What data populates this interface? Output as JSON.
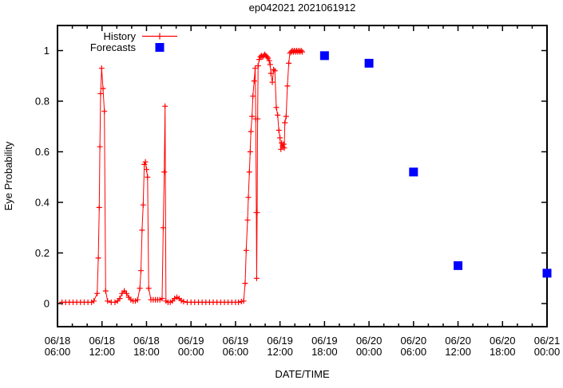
{
  "title": "ep042021 2021061912",
  "axes": {
    "x_label": "DATE/TIME",
    "y_label": "Eye Probability",
    "x_tick_labels": [
      [
        "06/18",
        "06:00"
      ],
      [
        "06/18",
        "12:00"
      ],
      [
        "06/18",
        "18:00"
      ],
      [
        "06/19",
        "00:00"
      ],
      [
        "06/19",
        "06:00"
      ],
      [
        "06/19",
        "12:00"
      ],
      [
        "06/19",
        "18:00"
      ],
      [
        "06/20",
        "00:00"
      ],
      [
        "06/20",
        "06:00"
      ],
      [
        "06/20",
        "12:00"
      ],
      [
        "06/20",
        "18:00"
      ],
      [
        "06/21",
        "00:00"
      ]
    ],
    "y_tick_labels": [
      "0",
      "0.2",
      "0.4",
      "0.6",
      "0.8",
      "1"
    ]
  },
  "legend": {
    "history_label": "History",
    "forecasts_label": "Forecasts"
  },
  "colors": {
    "history": "#ff0000",
    "forecast": "#0000ff",
    "axis": "#000000",
    "background": "#ffffff"
  },
  "chart_data": {
    "type": "line",
    "title": "ep042021 2021061912",
    "xlabel": "DATE/TIME",
    "ylabel": "Eye Probability",
    "x_unit": "hours_since_06/18_06:00",
    "x_range_hours": [
      0,
      66
    ],
    "x_major_tick_hours": 6,
    "x_minor_tick_hours": 2,
    "ylim": [
      -0.09,
      1.1
    ],
    "y_major_ticks": [
      0,
      0.2,
      0.4,
      0.6,
      0.8,
      1
    ],
    "grid": "off",
    "legend_position": "top-left-inside",
    "series": [
      {
        "name": "History",
        "style": "line-with-plus-markers",
        "color": "#ff0000",
        "points": [
          [
            0.6,
            0.005
          ],
          [
            1.1,
            0.005
          ],
          [
            1.6,
            0.005
          ],
          [
            2.1,
            0.005
          ],
          [
            2.6,
            0.005
          ],
          [
            3.1,
            0.005
          ],
          [
            3.6,
            0.005
          ],
          [
            4.1,
            0.005
          ],
          [
            4.6,
            0.005
          ],
          [
            4.9,
            0.01
          ],
          [
            5.35,
            0.04
          ],
          [
            5.5,
            0.18
          ],
          [
            5.63,
            0.38
          ],
          [
            5.72,
            0.62
          ],
          [
            5.81,
            0.83
          ],
          [
            5.95,
            0.93
          ],
          [
            6.14,
            0.85
          ],
          [
            6.32,
            0.76
          ],
          [
            6.49,
            0.05
          ],
          [
            6.75,
            0.01
          ],
          [
            7.25,
            0.005
          ],
          [
            7.75,
            0.005
          ],
          [
            8.1,
            0.01
          ],
          [
            8.4,
            0.02
          ],
          [
            8.7,
            0.04
          ],
          [
            9.0,
            0.05
          ],
          [
            9.3,
            0.04
          ],
          [
            9.6,
            0.025
          ],
          [
            9.9,
            0.015
          ],
          [
            10.2,
            0.01
          ],
          [
            10.5,
            0.01
          ],
          [
            10.8,
            0.015
          ],
          [
            11.1,
            0.06
          ],
          [
            11.25,
            0.13
          ],
          [
            11.4,
            0.29
          ],
          [
            11.55,
            0.39
          ],
          [
            11.7,
            0.55
          ],
          [
            11.85,
            0.56
          ],
          [
            12.0,
            0.53
          ],
          [
            12.15,
            0.5
          ],
          [
            12.3,
            0.06
          ],
          [
            12.6,
            0.015
          ],
          [
            12.9,
            0.015
          ],
          [
            13.2,
            0.015
          ],
          [
            13.5,
            0.015
          ],
          [
            13.8,
            0.015
          ],
          [
            14.1,
            0.02
          ],
          [
            14.25,
            0.3
          ],
          [
            14.4,
            0.52
          ],
          [
            14.5,
            0.78
          ],
          [
            14.62,
            0.01
          ],
          [
            14.9,
            0.005
          ],
          [
            15.2,
            0.005
          ],
          [
            15.5,
            0.01
          ],
          [
            15.8,
            0.02
          ],
          [
            16.1,
            0.025
          ],
          [
            16.4,
            0.02
          ],
          [
            16.7,
            0.012
          ],
          [
            17.0,
            0.008
          ],
          [
            17.5,
            0.005
          ],
          [
            18.0,
            0.005
          ],
          [
            18.5,
            0.005
          ],
          [
            19.0,
            0.005
          ],
          [
            19.5,
            0.005
          ],
          [
            20.0,
            0.005
          ],
          [
            20.5,
            0.005
          ],
          [
            21.0,
            0.005
          ],
          [
            21.5,
            0.005
          ],
          [
            22.0,
            0.005
          ],
          [
            22.5,
            0.005
          ],
          [
            23.0,
            0.005
          ],
          [
            23.5,
            0.005
          ],
          [
            24.0,
            0.005
          ],
          [
            24.4,
            0.005
          ],
          [
            24.8,
            0.008
          ],
          [
            25.1,
            0.01
          ],
          [
            25.3,
            0.08
          ],
          [
            25.44,
            0.21
          ],
          [
            25.62,
            0.33
          ],
          [
            25.73,
            0.42
          ],
          [
            25.87,
            0.52
          ],
          [
            25.98,
            0.6
          ],
          [
            26.08,
            0.68
          ],
          [
            26.23,
            0.74
          ],
          [
            26.35,
            0.82
          ],
          [
            26.52,
            0.88
          ],
          [
            26.65,
            0.93
          ],
          [
            26.73,
            0.73
          ],
          [
            26.81,
            0.36
          ],
          [
            26.85,
            0.1
          ],
          [
            26.92,
            0.36
          ],
          [
            26.98,
            0.73
          ],
          [
            27.05,
            0.94
          ],
          [
            27.2,
            0.965
          ],
          [
            27.35,
            0.975
          ],
          [
            27.5,
            0.98
          ],
          [
            27.65,
            0.975
          ],
          [
            27.8,
            0.98
          ],
          [
            27.95,
            0.985
          ],
          [
            28.1,
            0.98
          ],
          [
            28.25,
            0.975
          ],
          [
            28.4,
            0.97
          ],
          [
            28.55,
            0.96
          ],
          [
            28.67,
            0.945
          ],
          [
            28.78,
            0.91
          ],
          [
            28.96,
            0.875
          ],
          [
            29.14,
            0.925
          ],
          [
            29.31,
            0.92
          ],
          [
            29.5,
            0.775
          ],
          [
            29.68,
            0.745
          ],
          [
            29.85,
            0.685
          ],
          [
            30.0,
            0.655
          ],
          [
            30.11,
            0.61
          ],
          [
            30.22,
            0.635
          ],
          [
            30.36,
            0.62
          ],
          [
            30.5,
            0.63
          ],
          [
            30.58,
            0.615
          ],
          [
            30.65,
            0.715
          ],
          [
            30.82,
            0.74
          ],
          [
            31.0,
            0.86
          ],
          [
            31.18,
            0.95
          ],
          [
            31.33,
            0.99
          ],
          [
            31.5,
            0.995
          ],
          [
            31.65,
            1.0
          ],
          [
            31.8,
            0.995
          ],
          [
            31.95,
            1.0
          ],
          [
            32.1,
            0.995
          ],
          [
            32.25,
            1.0
          ],
          [
            32.4,
            0.995
          ],
          [
            32.55,
            1.0
          ],
          [
            32.7,
            0.995
          ],
          [
            32.85,
            1.0
          ],
          [
            33.0,
            0.995
          ]
        ]
      },
      {
        "name": "Forecasts",
        "style": "filled-square-markers",
        "color": "#0000ff",
        "points": [
          [
            36,
            0.98
          ],
          [
            42,
            0.95
          ],
          [
            48,
            0.52
          ],
          [
            54,
            0.15
          ],
          [
            66,
            0.12
          ]
        ]
      }
    ]
  }
}
